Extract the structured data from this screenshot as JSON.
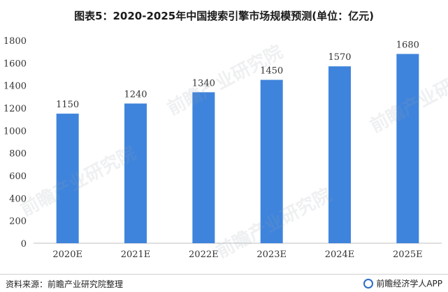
{
  "title": "图表5：2020-2025年中国搜索引擎市场规模预测(单位：亿元)",
  "source": "资料来源：前瞻产业研究院整理",
  "brand": "前瞻经济学人APP",
  "watermark": "前瞻产业研究院",
  "colors": {
    "bar": "#3f84dc",
    "axis": "#bfbfbf",
    "text": "#333333"
  },
  "chart_data": {
    "type": "bar",
    "categories": [
      "2020E",
      "2021E",
      "2022E",
      "2023E",
      "2024E",
      "2025E"
    ],
    "values": [
      1150,
      1240,
      1340,
      1450,
      1570,
      1680
    ],
    "ylim": [
      0,
      1800
    ],
    "yticks": [
      0,
      200,
      400,
      600,
      800,
      1000,
      1200,
      1400,
      1600,
      1800
    ],
    "grid": false,
    "data_labels": true
  }
}
